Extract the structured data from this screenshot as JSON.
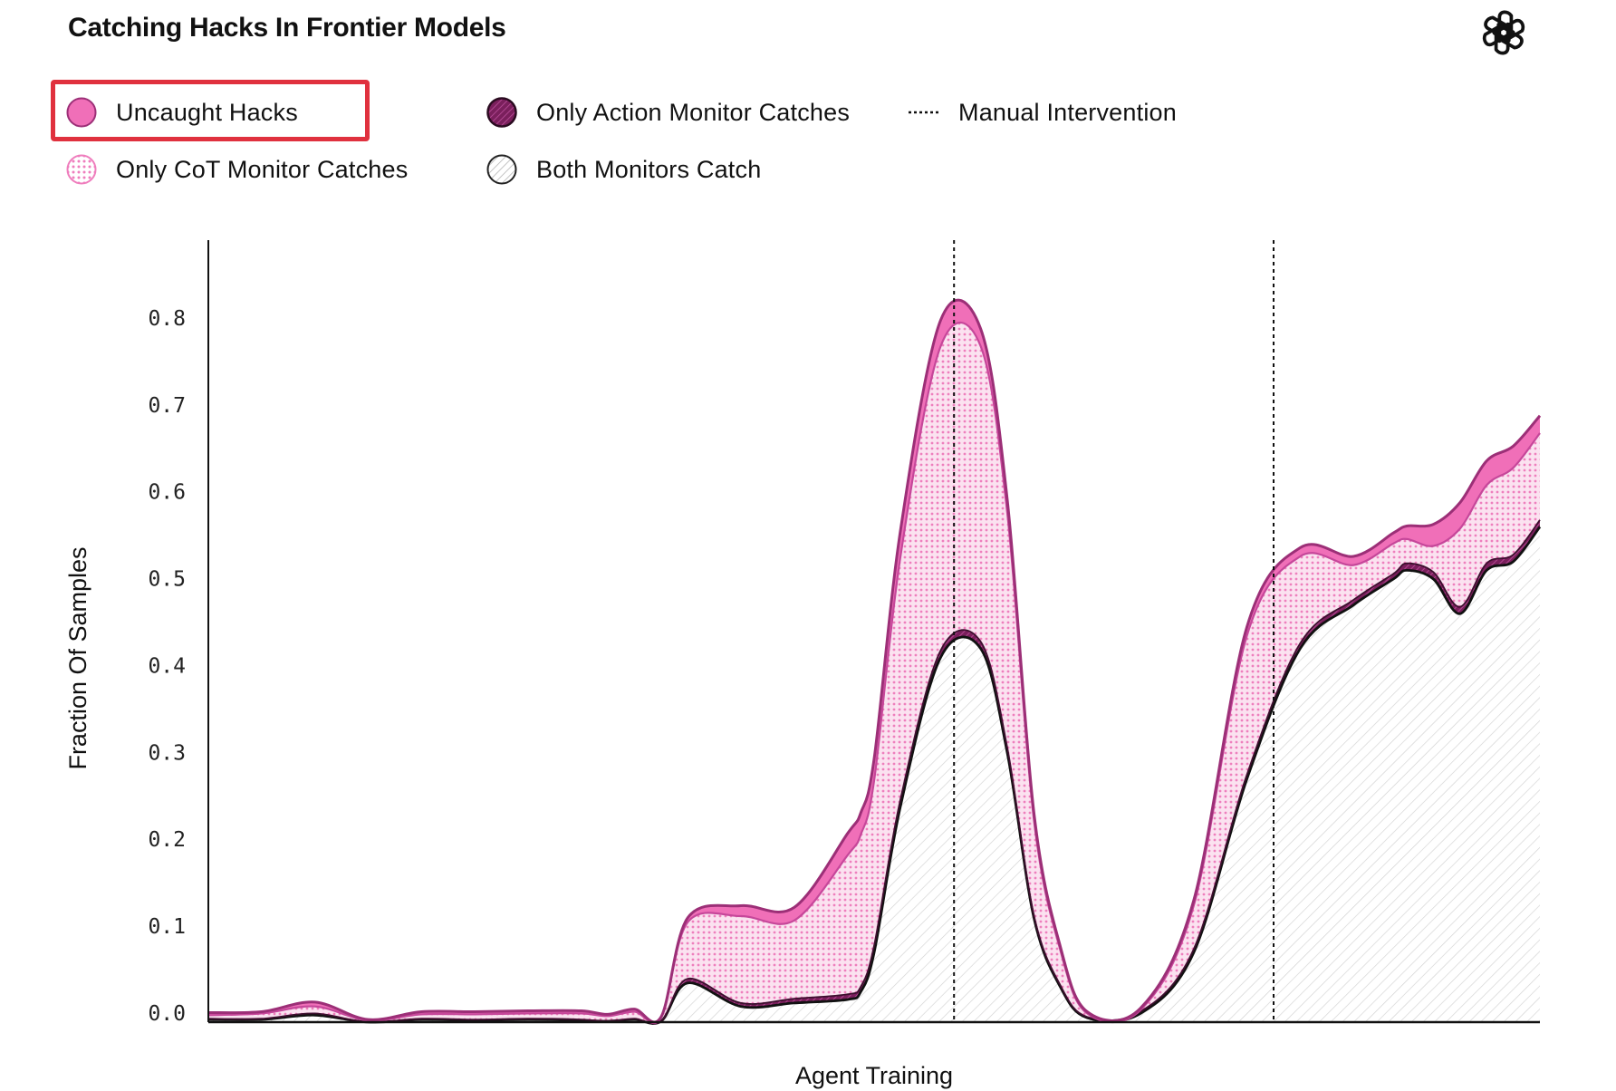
{
  "title": "Catching Hacks In Frontier Models",
  "logo_icon": "openai-logo-icon",
  "legend": {
    "uncaught": "Uncaught Hacks",
    "action": "Only Action Monitor Catches",
    "manual": "Manual Intervention",
    "cot": "Only CoT Monitor Catches",
    "both": "Both Monitors Catch"
  },
  "colors": {
    "uncaught": "#f06fb8",
    "cot_dots": "#ef7dbd",
    "action": "#7a1f5c",
    "outline_top": "#9c2f77",
    "both_line": "#111111",
    "highlight": "#e0313e"
  },
  "chart_data": {
    "type": "area",
    "stacked": true,
    "title": "Catching Hacks In Frontier Models",
    "xlabel": "Agent Training",
    "ylabel": "Fraction Of Samples",
    "ylim": [
      0,
      0.9
    ],
    "yticks": [
      "0.0",
      "0.1",
      "0.2",
      "0.3",
      "0.4",
      "0.5",
      "0.6",
      "0.7",
      "0.8"
    ],
    "ytick_values": [
      0,
      0.1,
      0.2,
      0.3,
      0.4,
      0.5,
      0.6,
      0.7,
      0.8
    ],
    "xlim": [
      0,
      100
    ],
    "grid": false,
    "legend_position": "top",
    "vlines": [
      56,
      80
    ],
    "x": [
      0,
      4,
      8,
      12,
      16,
      20,
      24,
      28,
      30,
      32,
      34,
      36,
      40,
      44,
      48,
      49,
      50,
      52,
      55,
      58,
      60,
      62,
      64,
      66,
      70,
      74,
      78,
      82,
      86,
      89,
      90,
      92,
      94,
      96,
      98,
      100
    ],
    "series": [
      {
        "name": "Both Monitors Catch",
        "values": [
          0.003,
          0.003,
          0.008,
          0.0,
          0.003,
          0.002,
          0.003,
          0.002,
          0.001,
          0.003,
          0.001,
          0.045,
          0.018,
          0.022,
          0.026,
          0.035,
          0.08,
          0.25,
          0.42,
          0.43,
          0.31,
          0.12,
          0.04,
          0.005,
          0.01,
          0.08,
          0.28,
          0.43,
          0.48,
          0.51,
          0.52,
          0.51,
          0.47,
          0.52,
          0.53,
          0.57
        ]
      },
      {
        "name": "Only Action Monitor Catches",
        "values": [
          0.001,
          0.001,
          0.002,
          0.0,
          0.001,
          0.001,
          0.001,
          0.001,
          0.0,
          0.001,
          0.0,
          0.005,
          0.004,
          0.005,
          0.006,
          0.006,
          0.008,
          0.008,
          0.008,
          0.008,
          0.006,
          0.003,
          0.002,
          0.001,
          0.002,
          0.004,
          0.005,
          0.006,
          0.006,
          0.006,
          0.008,
          0.008,
          0.008,
          0.008,
          0.008,
          0.008
        ]
      },
      {
        "name": "Only CoT Monitor Catches",
        "values": [
          0.004,
          0.006,
          0.008,
          0.002,
          0.005,
          0.006,
          0.006,
          0.007,
          0.006,
          0.008,
          0.004,
          0.065,
          0.1,
          0.09,
          0.16,
          0.175,
          0.19,
          0.28,
          0.35,
          0.34,
          0.27,
          0.11,
          0.04,
          0.004,
          0.002,
          0.05,
          0.16,
          0.1,
          0.04,
          0.035,
          0.028,
          0.03,
          0.09,
          0.09,
          0.1,
          0.1
        ]
      },
      {
        "name": "Uncaught Hacks",
        "values": [
          0.003,
          0.002,
          0.005,
          0.001,
          0.003,
          0.003,
          0.003,
          0.003,
          0.002,
          0.003,
          0.001,
          0.005,
          0.012,
          0.015,
          0.025,
          0.025,
          0.025,
          0.03,
          0.03,
          0.02,
          0.015,
          0.008,
          0.004,
          0.002,
          0.002,
          0.006,
          0.01,
          0.01,
          0.01,
          0.012,
          0.015,
          0.025,
          0.03,
          0.028,
          0.025,
          0.02
        ]
      }
    ]
  }
}
